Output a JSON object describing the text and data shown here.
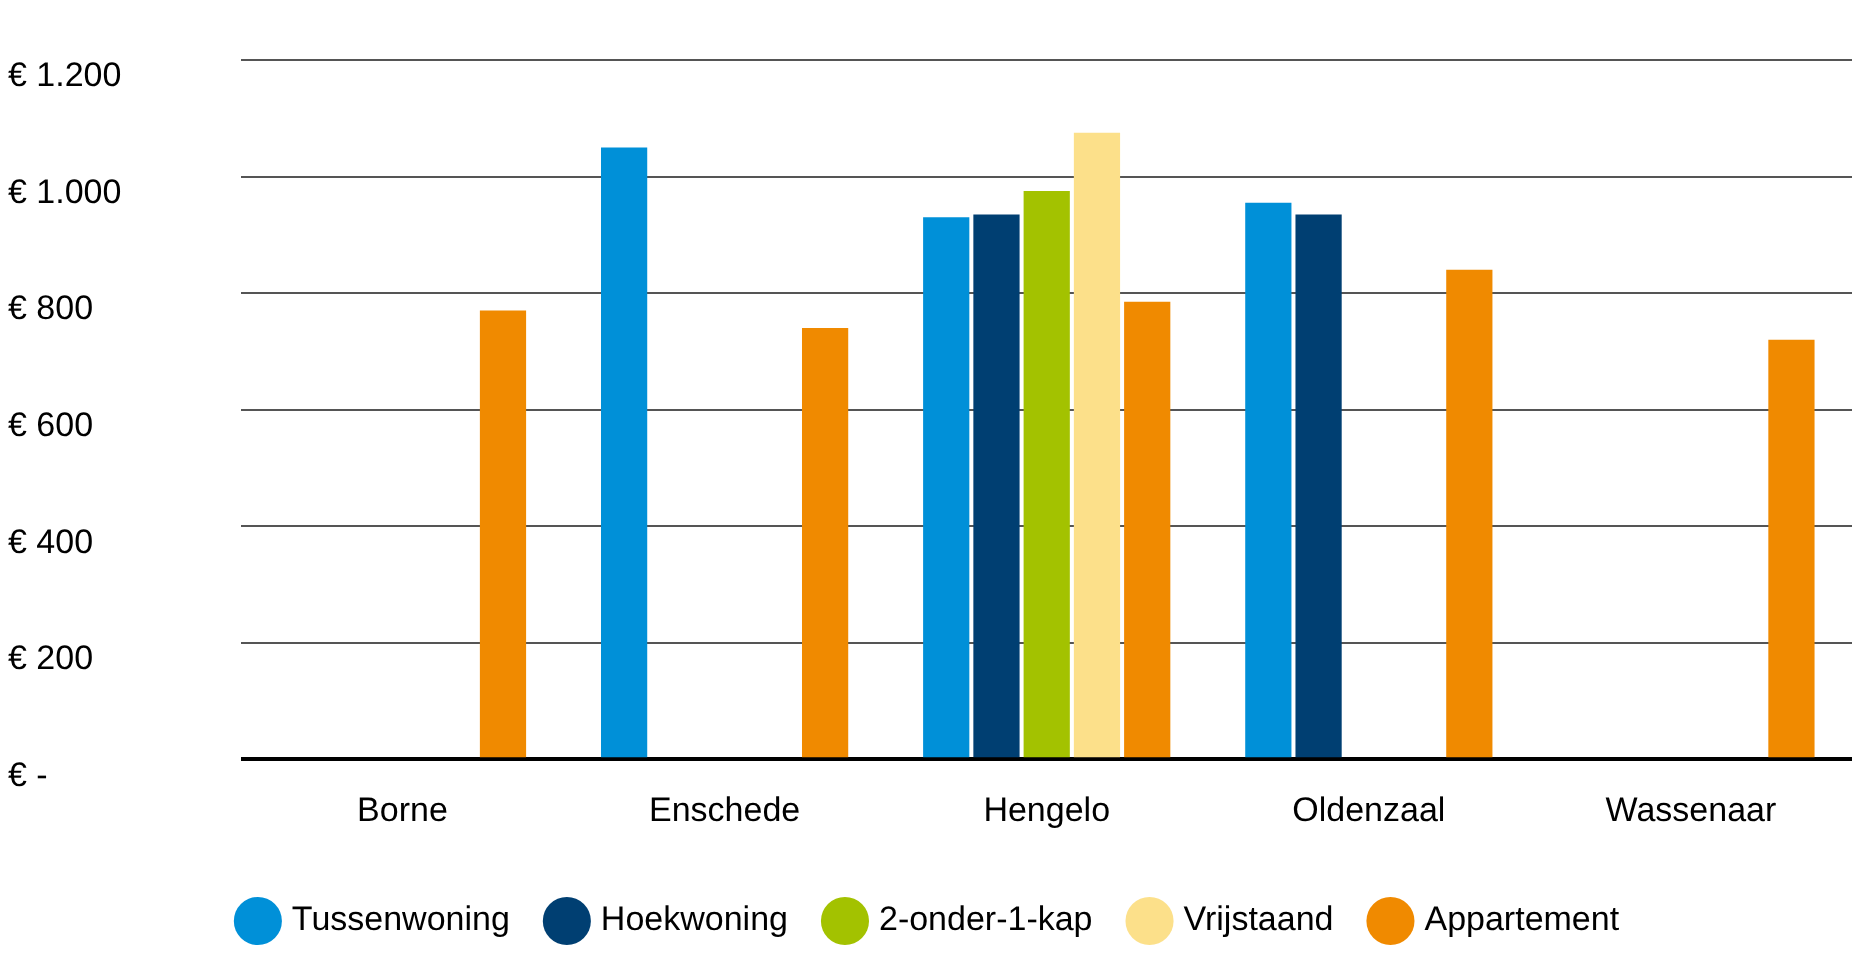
{
  "chart_data": {
    "type": "bar",
    "categories": [
      "Borne",
      "Enschede",
      "Hengelo",
      "Oldenzaal",
      "Wassenaar"
    ],
    "series": [
      {
        "name": "Tussenwoning",
        "color": "#0090d8",
        "values": [
          null,
          1050,
          930,
          955,
          null
        ]
      },
      {
        "name": "Hoekwoning",
        "color": "#003f72",
        "values": [
          null,
          null,
          935,
          935,
          null
        ]
      },
      {
        "name": "2-onder-1-kap",
        "color": "#a3c200",
        "values": [
          null,
          null,
          975,
          null,
          null
        ]
      },
      {
        "name": "Vrijstaand",
        "color": "#fce08a",
        "values": [
          null,
          null,
          1075,
          null,
          null
        ]
      },
      {
        "name": "Appartement",
        "color": "#f08a00",
        "values": [
          770,
          740,
          785,
          840,
          720
        ]
      }
    ],
    "ylim": [
      0,
      1200
    ],
    "yticks": [
      {
        "value": 0,
        "label": "€ -"
      },
      {
        "value": 200,
        "label": "€ 200"
      },
      {
        "value": 400,
        "label": "€ 400"
      },
      {
        "value": 600,
        "label": "€ 600"
      },
      {
        "value": 800,
        "label": "€ 800"
      },
      {
        "value": 1000,
        "label": "€ 1.000"
      },
      {
        "value": 1200,
        "label": "€ 1.200"
      }
    ],
    "grid": "y",
    "legend": "bottom"
  }
}
